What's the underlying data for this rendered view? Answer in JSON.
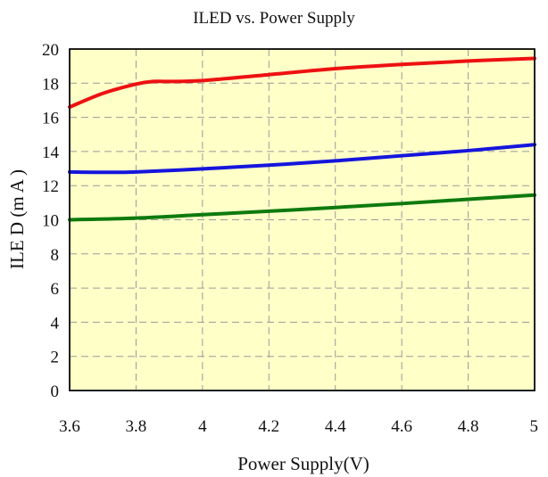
{
  "chart_data": {
    "type": "line",
    "title": "ILED vs. Power Supply",
    "xlabel": "Power Supply(V)",
    "ylabel": "ILE D (m A )",
    "xlim": [
      3.6,
      5.0
    ],
    "ylim": [
      0,
      20
    ],
    "xticks": [
      "3.6",
      "3.8",
      "4",
      "4.2",
      "4.4",
      "4.6",
      "4.8",
      "5"
    ],
    "yticks": [
      "0",
      "2",
      "4",
      "6",
      "8",
      "10",
      "12",
      "14",
      "16",
      "18",
      "20"
    ],
    "grid": true,
    "background_color": "#ffffc8",
    "series": [
      {
        "color": "#ee1111",
        "x": [
          3.6,
          3.7,
          3.8,
          3.85,
          3.9,
          4.0,
          4.2,
          4.4,
          4.6,
          4.8,
          5.0
        ],
        "y": [
          16.6,
          17.4,
          17.95,
          18.1,
          18.1,
          18.15,
          18.5,
          18.85,
          19.1,
          19.3,
          19.45
        ]
      },
      {
        "color": "#1515dd",
        "x": [
          3.6,
          3.7,
          3.8,
          4.0,
          4.2,
          4.4,
          4.6,
          4.8,
          5.0
        ],
        "y": [
          12.8,
          12.78,
          12.8,
          12.98,
          13.2,
          13.45,
          13.75,
          14.05,
          14.4
        ]
      },
      {
        "color": "#0e7a0e",
        "x": [
          3.6,
          3.8,
          4.0,
          4.2,
          4.4,
          4.6,
          4.8,
          5.0
        ],
        "y": [
          10.0,
          10.1,
          10.3,
          10.5,
          10.72,
          10.95,
          11.2,
          11.45
        ]
      }
    ]
  }
}
